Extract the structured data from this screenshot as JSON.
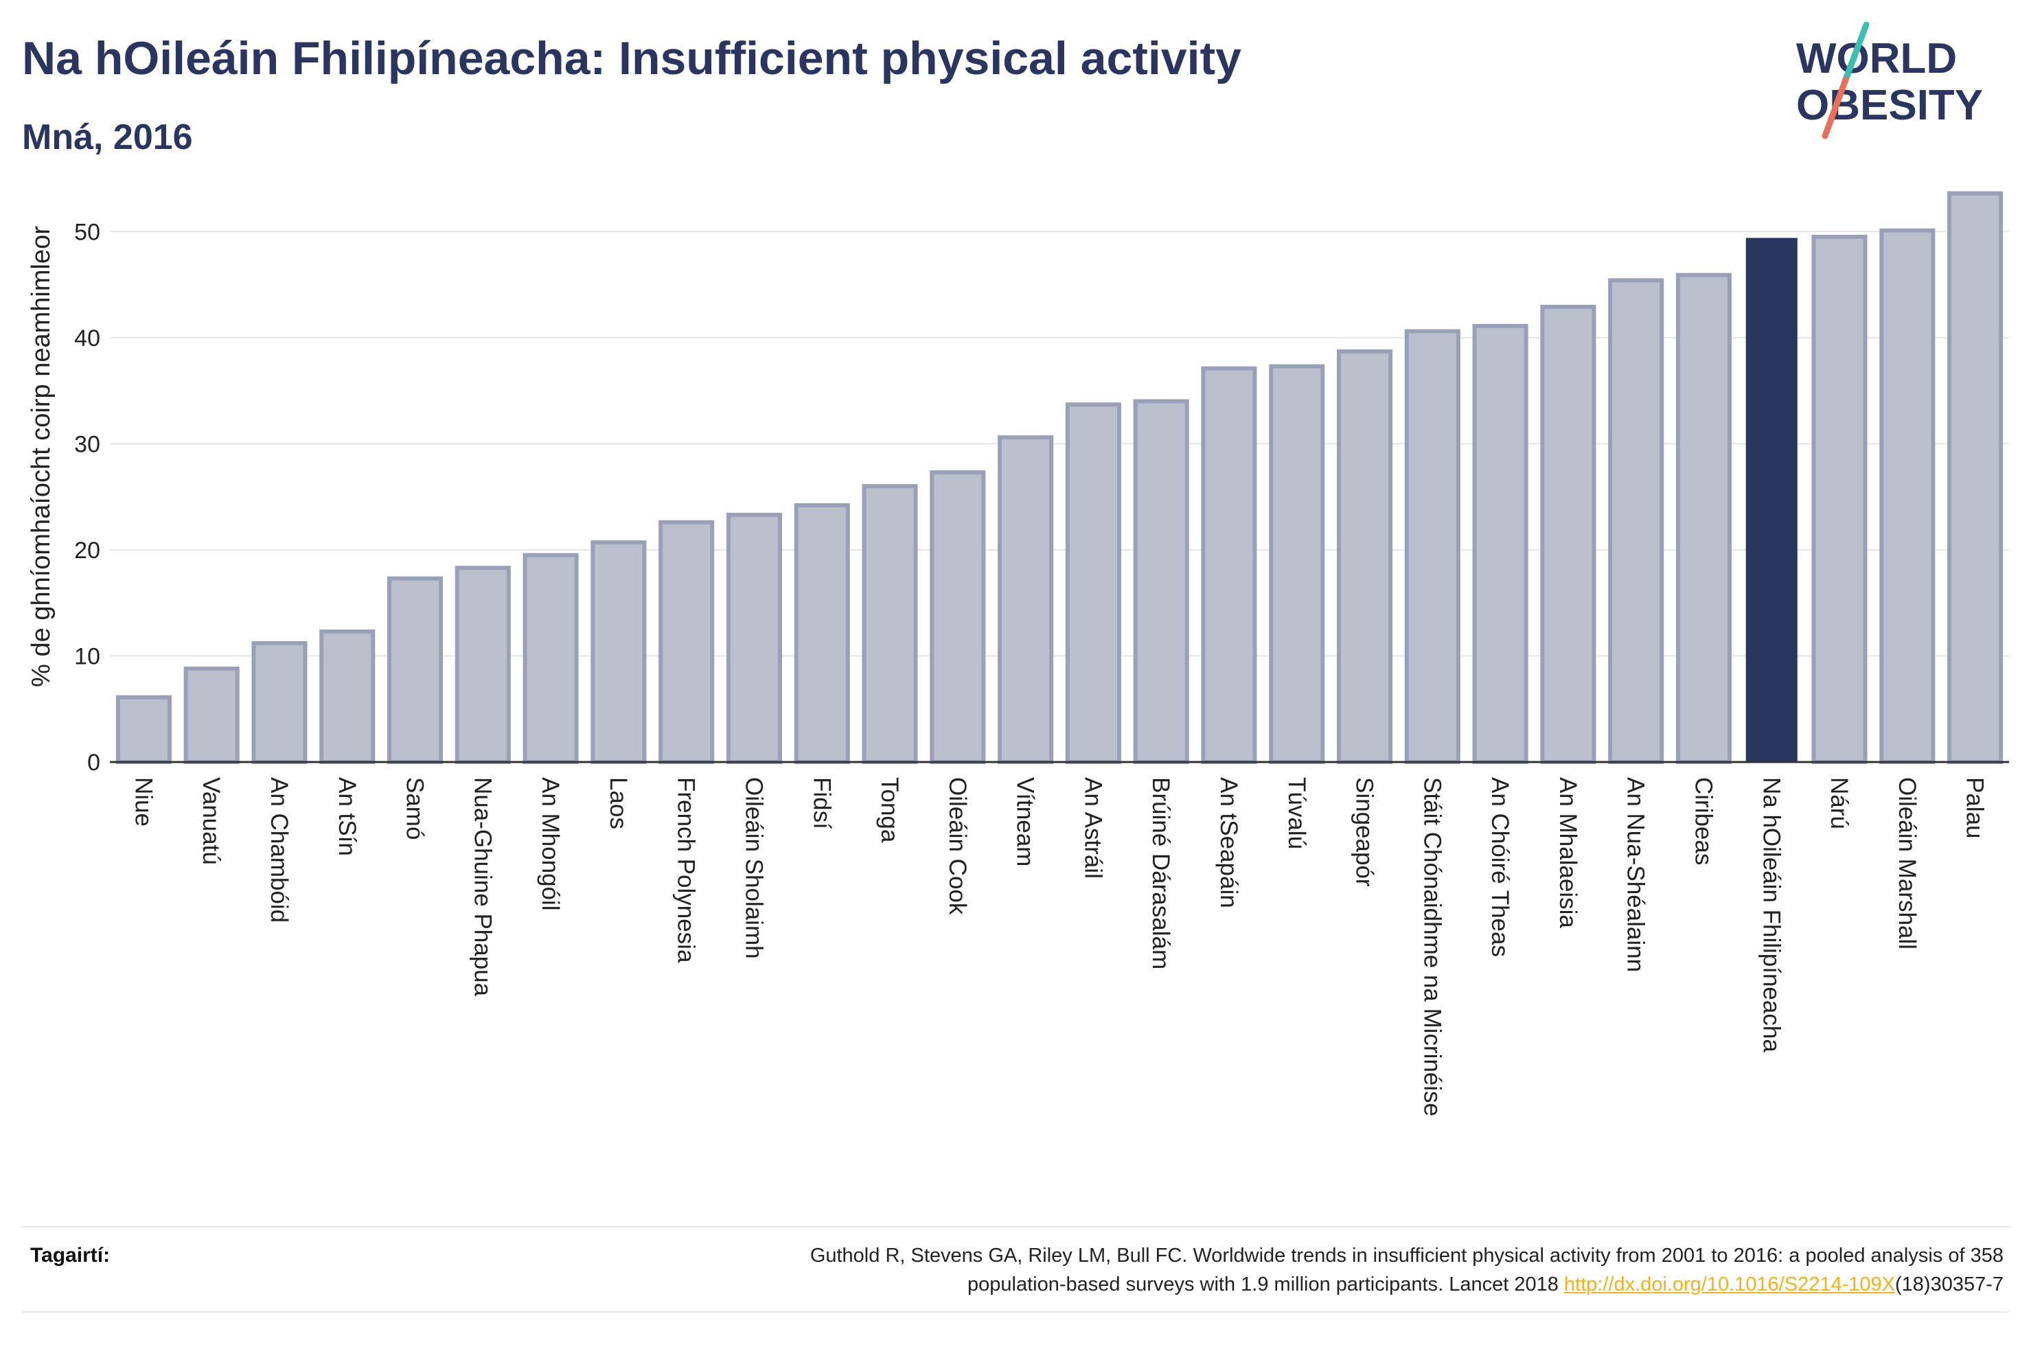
{
  "title": "Na hOileáin Fhilipíneacha: Insufficient physical activity",
  "subtitle": "Mná, 2016",
  "logo": {
    "line1": "WORLD",
    "line2": "OBESITY"
  },
  "colors": {
    "bar": "#bcc0cd",
    "bar_stroke": "#9aa0b7",
    "highlight": "#2a3560",
    "grid": "#e5e5e5",
    "logo_teal": "#3dbfb0",
    "logo_red": "#e8705c",
    "link": "#f2b21b"
  },
  "reference": {
    "label": "Tagairtí:",
    "text_line1": "Guthold R, Stevens GA, Riley LM, Bull FC. Worldwide trends in insufficient physical activity from 2001 to 2016: a pooled analysis of 358",
    "text_line2_pre": "population-based surveys with 1.9 million participants. Lancet 2018 ",
    "link": "http://dx.doi.org/10.1016/S2214-109X",
    "text_line2_post": "(18)30357-7"
  },
  "chart_data": {
    "type": "bar",
    "title": "Na hOileáin Fhilipíneacha: Insufficient physical activity",
    "subtitle": "Mná, 2016",
    "xlabel": "",
    "ylabel": "% de ghníomhaíocht coirp neamhimleor",
    "ylim": [
      0,
      55
    ],
    "yticks": [
      0,
      10,
      20,
      30,
      40,
      50
    ],
    "grid": true,
    "highlight": "Na hOileáin Fhilipíneacha",
    "categories": [
      "Niue",
      "Vanuatú",
      "An Chambóid",
      "An tSín",
      "Samó",
      "Nua-Ghuine Phapua",
      "An Mhongóil",
      "Laos",
      "French Polynesia",
      "Oileáin Sholaimh",
      "Fidsí",
      "Tonga",
      "Oileáin Cook",
      "Vítneam",
      "An Astráil",
      "Brúiné Dárasalám",
      "An tSeapáin",
      "Túvalú",
      "Singeapór",
      "Stáit Chónaidhme na Micrinéise",
      "An Chóiré Theas",
      "An Mhalaeisia",
      "An Nua-Shéalainn",
      "Ciribeas",
      "Na hOileáin Fhilipíneacha",
      "Nárú",
      "Oileáin Marshall",
      "Palau"
    ],
    "values": [
      6.1,
      8.8,
      11.2,
      12.3,
      17.3,
      18.3,
      19.5,
      20.7,
      22.6,
      23.3,
      24.2,
      26.0,
      27.3,
      30.6,
      33.7,
      34.0,
      37.1,
      37.3,
      38.7,
      40.6,
      41.1,
      42.9,
      45.4,
      45.9,
      49.4,
      49.5,
      50.1,
      53.6
    ]
  }
}
